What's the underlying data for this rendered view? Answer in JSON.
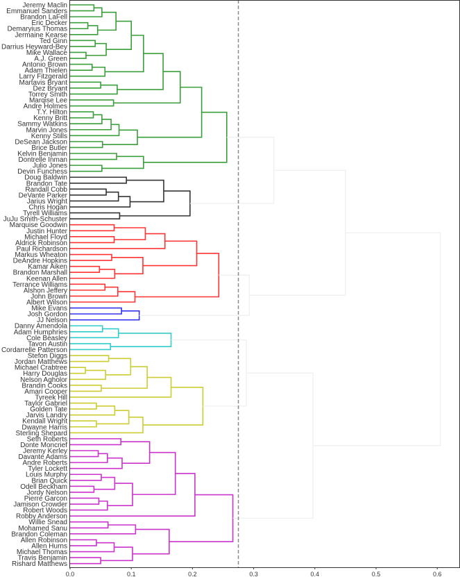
{
  "chart_data": {
    "type": "dendrogram",
    "orientation": "left-to-right",
    "xlim": [
      0.0,
      0.64
    ],
    "xticks": [
      "0.0",
      "0.1",
      "0.2",
      "0.3",
      "0.4",
      "0.5",
      "0.6"
    ],
    "xtick_values": [
      0.0,
      0.1,
      0.2,
      0.3,
      0.4,
      0.5,
      0.6
    ],
    "threshold": 0.275,
    "threshold_style": "dashed",
    "grid": false,
    "colors": {
      "green": "#3a9e3a",
      "black": "#333333",
      "red": "#ff3333",
      "blue": "#3333ee",
      "cyan": "#33cccc",
      "yellow": "#cccc33",
      "magenta": "#cc33cc",
      "above_threshold": "#eeeeee",
      "threshold_line": "#888888"
    },
    "labels": [
      "Jeremy Maclin",
      "Emmanuel Sanders",
      "Brandon LaFell",
      "Eric Decker",
      "Demaryius Thomas",
      "Jermaine Kearse",
      "Ted Ginn",
      "Darrius Heyward-Bey",
      "Mike Wallace",
      "A.J. Green",
      "Antonio Brown",
      "Adam Thielen",
      "Larry Fitzgerald",
      "Martavis Bryant",
      "Dez Bryant",
      "Torrey Smith",
      "Marqise Lee",
      "Andre Holmes",
      "T.Y. Hilton",
      "Kenny Britt",
      "Sammy Watkins",
      "Marvin Jones",
      "Kenny Stills",
      "DeSean Jackson",
      "Brice Butler",
      "Kelvin Benjamin",
      "Dontrelle Inman",
      "Julio Jones",
      "Devin Funchess",
      "Doug Baldwin",
      "Brandon Tate",
      "Randall Cobb",
      "DeVante Parker",
      "Jarius Wright",
      "Chris Hogan",
      "Tyrell Williams",
      "JuJu Smith-Schuster",
      "Marquise Goodwin",
      "Justin Hunter",
      "Michael Floyd",
      "Aldrick Robinson",
      "Paul Richardson",
      "Markus Wheaton",
      "DeAndre Hopkins",
      "Kamar Aiken",
      "Brandon Marshall",
      "Keenan Allen",
      "Terrance Williams",
      "Alshon Jeffery",
      "John Brown",
      "Albert Wilson",
      "Mike Evans",
      "Josh Gordon",
      "JJ Nelson",
      "Danny Amendola",
      "Adam Humphries",
      "Cole Beasley",
      "Tavon Austin",
      "Cordarrelle Patterson",
      "Stefon Diggs",
      "Jordan Matthews",
      "Michael Crabtree",
      "Harry Douglas",
      "Nelson Agholor",
      "Brandin Cooks",
      "Amari Cooper",
      "Tyreek Hill",
      "Taylor Gabriel",
      "Golden Tate",
      "Jarvis Landry",
      "Kendall Wright",
      "Dwayne Harris",
      "Sterling Shepard",
      "Seth Roberts",
      "Donte Moncrief",
      "Jeremy Kerley",
      "Davante Adams",
      "Andre Roberts",
      "Tyler Lockett",
      "Louis Murphy",
      "Brian Quick",
      "Odell Beckham",
      "Jordy Nelson",
      "Pierre Garcon",
      "Jamison Crowder",
      "Robert Woods",
      "Robby Anderson",
      "Willie Snead",
      "Mohamed Sanu",
      "Brandon Coleman",
      "Allen Robinson",
      "Allen Hurns",
      "Michael Thomas",
      "Travis Benjamin",
      "Rishard Matthews"
    ],
    "tree": [
      0.605,
      [
        0.45,
        [
          0.333,
          {
            "color": "green",
            "tree": [
              0.256,
              [
                0.215,
                [
                  0.18,
                  [
                    0.152,
                    [
                      0.12,
                      [
                        0.1,
                        [
                          0.075,
                          [
                            0.052,
                            [
                              0.039,
                              0,
                              1
                            ],
                            2
                          ],
                          [
                            0.045,
                            [
                              0.029,
                              3,
                              4
                            ],
                            5
                          ]
                        ],
                        [
                          0.059,
                          [
                            0.041,
                            6,
                            7
                          ],
                          [
                            0.026,
                            8,
                            9
                          ]
                        ]
                      ],
                      [
                        0.057,
                        [
                          0.036,
                          10,
                          11
                        ],
                        12
                      ]
                    ],
                    [
                      0.077,
                      [
                        0.05,
                        13,
                        14
                      ],
                      15
                    ]
                  ],
                  [
                    0.071,
                    16,
                    17
                  ]
                ],
                [
                  0.11,
                  [
                    0.08,
                    [
                      0.067,
                      [
                        0.052,
                        [
                          0.038,
                          18,
                          19
                        ],
                        20
                      ],
                      21
                    ],
                    22
                  ],
                  [
                    0.053,
                    23,
                    24
                  ]
                ]
              ],
              [
                0.12,
                [
                  0.076,
                  25,
                  26
                ],
                [
                  0.052,
                  27,
                  28
                ]
              ]
            ]
          },
          {
            "color": "black",
            "tree": [
              0.196,
              [
                0.153,
                [
                  0.092,
                  29,
                  30
                ],
                [
                  0.098,
                  [
                    0.079,
                    [
                      0.059,
                      31,
                      32
                    ],
                    33
                  ],
                  34
                ]
              ],
              [
                0.081,
                35,
                36
              ]
            ]
          }
        ],
        [
          0.293,
          {
            "color": "red",
            "tree": [
              0.243,
              [
                0.207,
                [
                  0.155,
                  [
                    0.123,
                    [
                      0.072,
                      37,
                      38
                    ],
                    [
                      0.072,
                      39,
                      40
                    ]
                  ],
                  41
                ],
                [
                  0.119,
                  [
                    0.068,
                    42,
                    43
                  ],
                  [
                    0.073,
                    [
                      0.048,
                      44,
                      45
                    ],
                    46
                  ]
                ]
              ],
              [
                0.106,
                [
                  0.078,
                  [
                    0.057,
                    47,
                    48
                  ],
                  49
                ],
                50
              ]
            ]
          },
          {
            "color": "blue",
            "tree": [
              0.113,
              [
                0.084,
                51,
                52
              ],
              53
            ]
          }
        ]
      ],
      [
        0.397,
        [
          0.288,
          {
            "color": "cyan",
            "tree": [
              0.165,
              [
                0.079,
                [
                  0.053,
                  54,
                  55
                ],
                56
              ],
              [
                0.066,
                57,
                58
              ]
            ]
          },
          {
            "color": "yellow",
            "tree": [
              0.217,
              [
                0.165,
                [
                  0.126,
                  [
                    0.099,
                    [
                      0.063,
                      59,
                      60
                    ],
                    [
                      0.058,
                      [
                        0.025,
                        61,
                        62
                      ],
                      63
                    ]
                  ],
                  [
                    0.051,
                    64,
                    65
                  ]
                ],
                66
              ],
              [
                0.119,
                [
                  0.096,
                  [
                    0.073,
                    [
                      0.043,
                      67,
                      68
                    ],
                    69
                  ],
                  [
                    0.043,
                    70,
                    71
                  ]
                ],
                72
              ]
            ]
          }
        ],
        {
          "color": "magenta",
          "tree": [
            0.266,
            [
              0.204,
              [
                0.172,
                [
                  0.13,
                  [
                    0.083,
                    73,
                    74
                  ],
                  [
                    0.085,
                    [
                      0.061,
                      [
                        0.046,
                        75,
                        76
                      ],
                      77
                    ],
                    78
                  ]
                ],
                [
                  0.102,
                  [
                    0.073,
                    [
                      0.051,
                      79,
                      80
                    ],
                    [
                      0.039,
                      81,
                      82
                    ]
                  ],
                  [
                    0.061,
                    [
                      0.047,
                      83,
                      84
                    ],
                    85
                  ]
                ]
              ],
              86
            ],
            [
              0.162,
              [
                0.107,
                [
                  0.062,
                  87,
                  88
                ],
                89
              ],
              [
                0.102,
                [
                  0.072,
                  [
                    0.043,
                    90,
                    91
                  ],
                  92
                ],
                [
                  0.05,
                  93,
                  94
                ]
              ]
            ]
          ]
        }
      ]
    ]
  }
}
